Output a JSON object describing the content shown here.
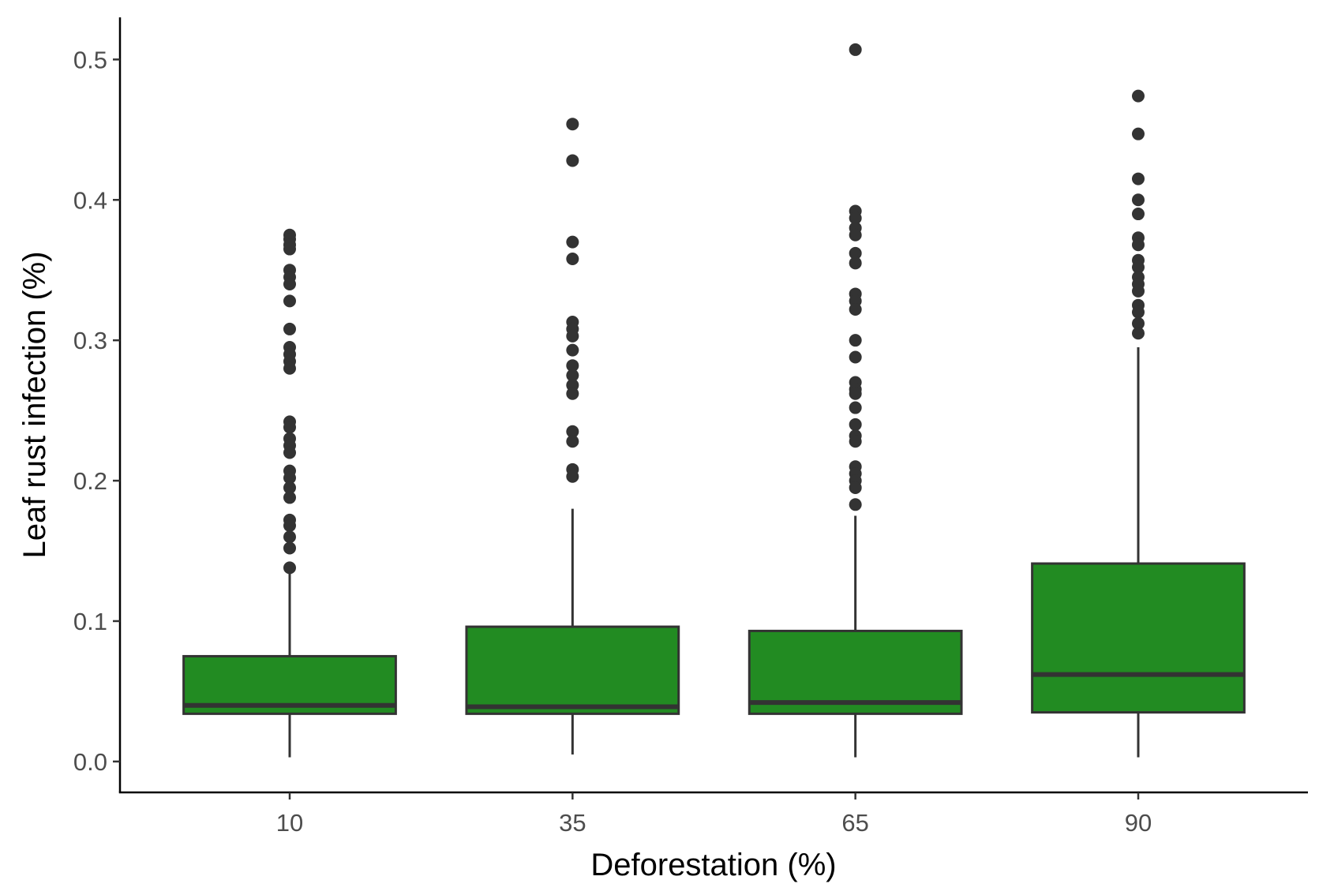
{
  "chart_data": {
    "type": "box",
    "xlabel": "Deforestation (%)",
    "ylabel": "Leaf rust infection (%)",
    "ylim": [
      -0.022,
      0.53
    ],
    "yticks": [
      0.0,
      0.1,
      0.2,
      0.3,
      0.4,
      0.5
    ],
    "ytick_labels": [
      "0.0",
      "0.1",
      "0.2",
      "0.3",
      "0.4",
      "0.5"
    ],
    "categories": [
      "10",
      "35",
      "65",
      "90"
    ],
    "grid": false,
    "legend": "none",
    "fill_color": "#228B22",
    "line_color": "#333333",
    "boxes": [
      {
        "category": "10",
        "whisker_low": 0.003,
        "q1": 0.034,
        "median": 0.04,
        "q3": 0.075,
        "whisker_high": 0.135,
        "outliers": [
          0.375,
          0.372,
          0.368,
          0.365,
          0.35,
          0.345,
          0.34,
          0.328,
          0.308,
          0.295,
          0.29,
          0.285,
          0.28,
          0.242,
          0.238,
          0.23,
          0.225,
          0.22,
          0.207,
          0.202,
          0.195,
          0.188,
          0.172,
          0.168,
          0.16,
          0.152,
          0.138
        ]
      },
      {
        "category": "35",
        "whisker_low": 0.005,
        "q1": 0.034,
        "median": 0.039,
        "q3": 0.096,
        "whisker_high": 0.18,
        "outliers": [
          0.454,
          0.428,
          0.37,
          0.358,
          0.313,
          0.308,
          0.303,
          0.293,
          0.282,
          0.275,
          0.268,
          0.262,
          0.235,
          0.228,
          0.208,
          0.203
        ]
      },
      {
        "category": "65",
        "whisker_low": 0.003,
        "q1": 0.034,
        "median": 0.042,
        "q3": 0.093,
        "whisker_high": 0.175,
        "outliers": [
          0.507,
          0.392,
          0.387,
          0.38,
          0.375,
          0.362,
          0.355,
          0.333,
          0.328,
          0.322,
          0.3,
          0.288,
          0.27,
          0.265,
          0.262,
          0.252,
          0.24,
          0.232,
          0.228,
          0.21,
          0.205,
          0.2,
          0.195,
          0.183
        ]
      },
      {
        "category": "90",
        "whisker_low": 0.003,
        "q1": 0.035,
        "median": 0.062,
        "q3": 0.141,
        "whisker_high": 0.295,
        "outliers": [
          0.474,
          0.447,
          0.415,
          0.4,
          0.39,
          0.373,
          0.368,
          0.357,
          0.352,
          0.345,
          0.34,
          0.335,
          0.325,
          0.32,
          0.312,
          0.305
        ]
      }
    ]
  }
}
